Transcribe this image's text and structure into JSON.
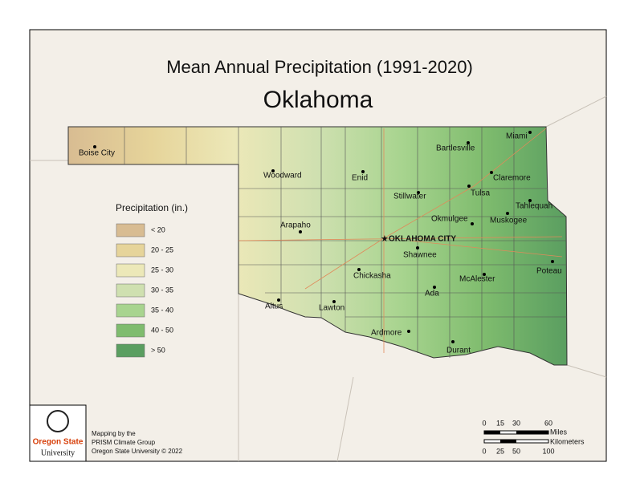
{
  "title": "Mean Annual Precipitation (1991-2020)",
  "subtitle": "Oklahoma",
  "legend": {
    "title": "Precipitation (in.)",
    "items": [
      {
        "label": "< 20",
        "color": "#d8bc92"
      },
      {
        "label": "20 - 25",
        "color": "#e6d49a"
      },
      {
        "label": "25 - 30",
        "color": "#ece8b8"
      },
      {
        "label": "30 - 35",
        "color": "#cfe0b0"
      },
      {
        "label": "35 - 40",
        "color": "#a8d48f"
      },
      {
        "label": "40 - 50",
        "color": "#7fbc6e"
      },
      {
        "label": "> 50",
        "color": "#5a9e60"
      }
    ]
  },
  "cities": [
    "Boise City",
    "Woodward",
    "Enid",
    "Bartlesville",
    "Miami",
    "Claremore",
    "Tulsa",
    "Stillwater",
    "Tahlequah",
    "Muskogee",
    "Okmulgee",
    "Arapaho",
    "OKLAHOMA CITY",
    "Shawnee",
    "Chickasha",
    "Poteau",
    "McAlester",
    "Ada",
    "Altus",
    "Lawton",
    "Ardmore",
    "Durant"
  ],
  "logo": [
    "Oregon State",
    "University"
  ],
  "credits": [
    "Mapping by the",
    "PRISM Climate Group",
    "Oregon State University © 2022"
  ],
  "scale": {
    "miles_label": "Miles",
    "km_label": "Kilometers",
    "miles_ticks": [
      0,
      15,
      30,
      60
    ],
    "km_ticks": [
      0,
      25,
      50,
      100
    ]
  }
}
